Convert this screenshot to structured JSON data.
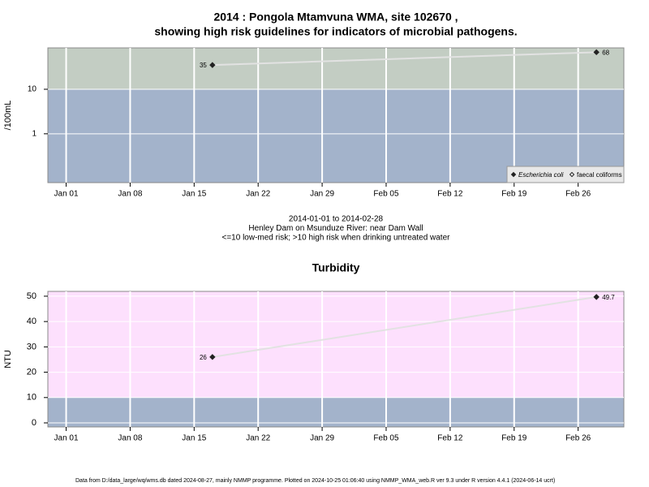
{
  "chart_data": [
    {
      "type": "line",
      "title": [
        "2014 : Pongola Mtamvuna WMA, site 102670 ,",
        "showing high risk guidelines for indicators of microbial pathogens."
      ],
      "subtitle": [
        "2014-01-01 to 2014-02-28",
        "Henley Dam on Msunduze River: near Dam Wall",
        "<=10 low-med risk; >10 high risk when drinking untreated water"
      ],
      "y_label": "/100mL",
      "log_y": true,
      "x": [
        "2014-01-17",
        "2014-02-28"
      ],
      "series": [
        {
          "name": "Escherichia coli",
          "color": "#222222",
          "marker": "filled",
          "values": [
            35,
            68
          ]
        },
        {
          "name": "faecal coliforms",
          "color": "#222222",
          "marker": "open",
          "values": [
            null,
            null
          ]
        }
      ],
      "line_color": "#e2e2e2",
      "xlim": [
        "2013-12-30",
        "2014-03-03"
      ],
      "xticks": [
        {
          "value": "2014-01-01",
          "label": "Jan 01"
        },
        {
          "value": "2014-01-08",
          "label": "Jan 08"
        },
        {
          "value": "2014-01-15",
          "label": "Jan 15"
        },
        {
          "value": "2014-01-22",
          "label": "Jan 22"
        },
        {
          "value": "2014-01-29",
          "label": "Jan 29"
        },
        {
          "value": "2014-02-05",
          "label": "Feb 05"
        },
        {
          "value": "2014-02-12",
          "label": "Feb 12"
        },
        {
          "value": "2014-02-19",
          "label": "Feb 19"
        },
        {
          "value": "2014-02-26",
          "label": "Feb 26"
        }
      ],
      "ylim": [
        0.08,
        85
      ],
      "yticks": [
        1,
        10
      ],
      "threshold": 10,
      "below_color": "#a3b3cb",
      "above_color": "#c3cdc3",
      "grid": true,
      "legend": "bottom-right"
    },
    {
      "type": "line",
      "title": [
        "Turbidity"
      ],
      "y_label": "NTU",
      "log_y": false,
      "x": [
        "2014-01-17",
        "2014-02-28"
      ],
      "series": [
        {
          "color": "#222222",
          "marker": "filled",
          "values": [
            26,
            49.7
          ]
        }
      ],
      "line_color": "#e2e2e2",
      "xlim": [
        "2013-12-30",
        "2014-03-03"
      ],
      "xticks": [
        {
          "value": "2014-01-01",
          "label": "Jan 01"
        },
        {
          "value": "2014-01-08",
          "label": "Jan 08"
        },
        {
          "value": "2014-01-15",
          "label": "Jan 15"
        },
        {
          "value": "2014-01-22",
          "label": "Jan 22"
        },
        {
          "value": "2014-01-29",
          "label": "Jan 29"
        },
        {
          "value": "2014-02-05",
          "label": "Feb 05"
        },
        {
          "value": "2014-02-12",
          "label": "Feb 12"
        },
        {
          "value": "2014-02-19",
          "label": "Feb 19"
        },
        {
          "value": "2014-02-26",
          "label": "Feb 26"
        }
      ],
      "ylim": [
        -1.6,
        51.9
      ],
      "yticks": [
        0,
        10,
        20,
        30,
        40,
        50
      ],
      "threshold": 10,
      "below_color": "#a3b3cb",
      "above_color": "#fde0fd",
      "grid": true
    }
  ],
  "footer": "Data from D:/data_large/wq/wms.db dated 2024-08-27, mainly NMMP programme. Plotted on 2024-10-25 01:06:40 using NMMP_WMA_web.R ver 9.3 under R version 4.4.1 (2024-06-14 ucrt)"
}
